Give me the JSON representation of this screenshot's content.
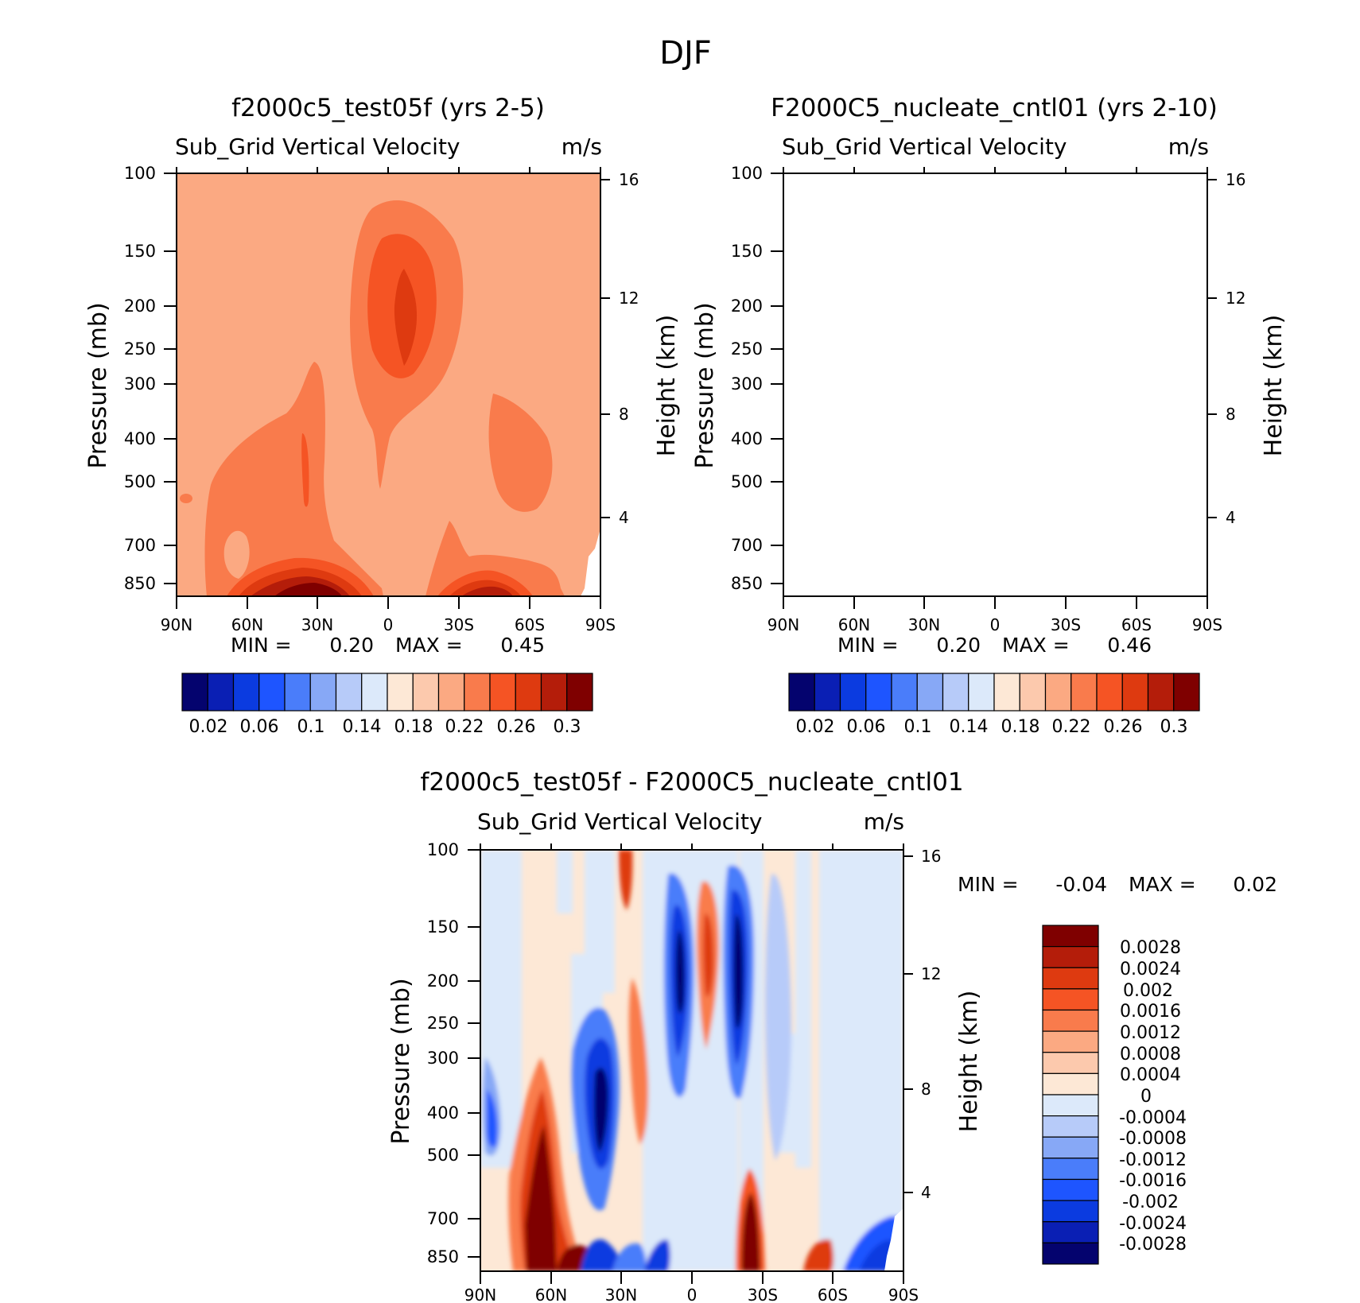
{
  "figure": {
    "title": "DJF"
  },
  "chart_data": [
    {
      "type": "contour",
      "title": "f2000c5_test05f (yrs 2-5)",
      "subtitle": "Sub_Grid Vertical Velocity",
      "units": "m/s",
      "ylabel": "Pressure (mb)",
      "ylabel_right": "Height (km)",
      "x_ticks": [
        "90N",
        "60N",
        "30N",
        "0",
        "30S",
        "60S",
        "90S"
      ],
      "y_ticks": [
        "100",
        "150",
        "200",
        "250",
        "300",
        "400",
        "500",
        "700",
        "850"
      ],
      "y_ticks_right": [
        "16",
        "12",
        "8",
        "4"
      ],
      "min_label": "MIN =",
      "min_value": "0.20",
      "max_label": "MAX =",
      "max_value": "0.45",
      "colorbar_labels": [
        "0.02",
        "0.06",
        "0.1",
        "0.14",
        "0.18",
        "0.22",
        "0.26",
        "0.3"
      ],
      "colorbar_colors": [
        "#04036e",
        "#0a1fb4",
        "#0b3be0",
        "#1e55ff",
        "#4a7dfa",
        "#87a8f6",
        "#b7cbf9",
        "#dce9fa",
        "#fde8d6",
        "#fcc9ad",
        "#fba982",
        "#f97b4c",
        "#f55424",
        "#de3a10",
        "#b41d0a",
        "#7f0000"
      ],
      "field": {
        "background": "#fba982"
      }
    },
    {
      "type": "contour",
      "title": "F2000C5_nucleate_cntl01 (yrs 2-10)",
      "subtitle": "Sub_Grid Vertical Velocity",
      "units": "m/s",
      "ylabel": "Pressure (mb)",
      "ylabel_right": "Height (km)",
      "x_ticks": [
        "90N",
        "60N",
        "30N",
        "0",
        "30S",
        "60S",
        "90S"
      ],
      "y_ticks": [
        "100",
        "150",
        "200",
        "250",
        "300",
        "400",
        "500",
        "700",
        "850"
      ],
      "y_ticks_right": [
        "16",
        "12",
        "8",
        "4"
      ],
      "min_label": "MIN =",
      "min_value": "0.20",
      "max_label": "MAX =",
      "max_value": "0.46",
      "colorbar_labels": [
        "0.02",
        "0.06",
        "0.1",
        "0.14",
        "0.18",
        "0.22",
        "0.26",
        "0.3"
      ],
      "colorbar_colors": [
        "#04036e",
        "#0a1fb4",
        "#0b3be0",
        "#1e55ff",
        "#4a7dfa",
        "#87a8f6",
        "#b7cbf9",
        "#dce9fa",
        "#fde8d6",
        "#fcc9ad",
        "#fba982",
        "#f97b4c",
        "#f55424",
        "#de3a10",
        "#b41d0a",
        "#7f0000"
      ],
      "field": {
        "background": "#fba982"
      }
    },
    {
      "type": "contour",
      "title": "f2000c5_test05f - F2000C5_nucleate_cntl01",
      "subtitle": "Sub_Grid Vertical Velocity",
      "units": "m/s",
      "ylabel": "Pressure (mb)",
      "ylabel_right": "Height (km)",
      "x_ticks": [
        "90N",
        "60N",
        "30N",
        "0",
        "30S",
        "60S",
        "90S"
      ],
      "y_ticks": [
        "100",
        "150",
        "200",
        "250",
        "300",
        "400",
        "500",
        "700",
        "850"
      ],
      "y_ticks_right": [
        "16",
        "12",
        "8",
        "4"
      ],
      "min_label": "MIN =",
      "min_value": "-0.04",
      "max_label": "MAX =",
      "max_value": "0.02",
      "colorbar_labels": [
        "0.0028",
        "0.0024",
        "0.002",
        "0.0016",
        "0.0012",
        "0.0008",
        "0.0004",
        "0",
        "-0.0004",
        "-0.0008",
        "-0.0012",
        "-0.0016",
        "-0.002",
        "-0.0024",
        "-0.0028"
      ],
      "colorbar_colors": [
        "#7f0000",
        "#b41d0a",
        "#de3a10",
        "#f55424",
        "#f97b4c",
        "#fba982",
        "#fcc9ad",
        "#fde8d6",
        "#dce9fa",
        "#b7cbf9",
        "#87a8f6",
        "#4a7dfa",
        "#1e55ff",
        "#0b3be0",
        "#0a1fb4",
        "#04036e"
      ],
      "field": {
        "background": "#fde8d6"
      }
    }
  ]
}
